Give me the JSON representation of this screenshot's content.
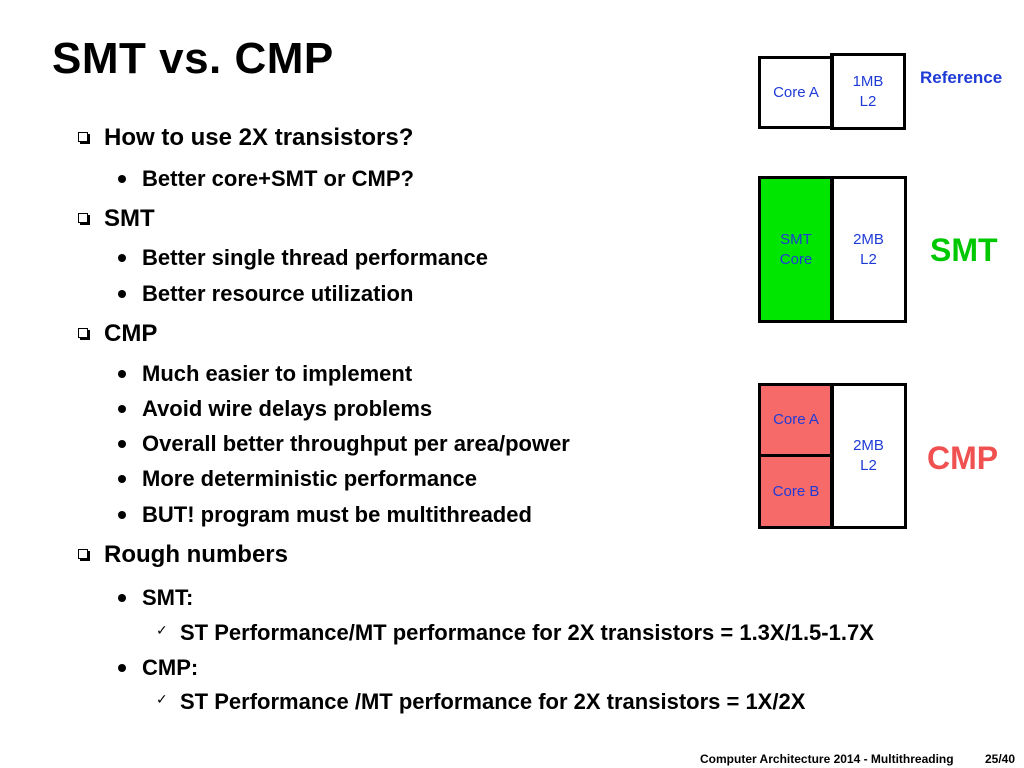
{
  "title": "SMT vs. CMP",
  "bullets": [
    {
      "level": 1,
      "text": "How to use 2X transistors?"
    },
    {
      "level": 2,
      "text": "Better core+SMT   or   CMP?"
    },
    {
      "level": 1,
      "text": "SMT"
    },
    {
      "level": 2,
      "text": "Better single thread performance"
    },
    {
      "level": 2,
      "text": "Better resource utilization"
    },
    {
      "level": 1,
      "text": "CMP"
    },
    {
      "level": 2,
      "text": "Much easier to implement"
    },
    {
      "level": 2,
      "text": "Avoid wire delays problems"
    },
    {
      "level": 2,
      "text": "Overall better throughput per area/power"
    },
    {
      "level": 2,
      "text": "More deterministic performance"
    },
    {
      "level": 2,
      "text": "BUT! program must be multithreaded"
    },
    {
      "level": 1,
      "text": "Rough numbers"
    },
    {
      "level": 2,
      "text": "SMT:"
    },
    {
      "level": 3,
      "text": "ST Performance/MT performance for 2X transistors = 1.3X/1.5-1.7X"
    },
    {
      "level": 2,
      "text": "CMP:"
    },
    {
      "level": 3,
      "text": "ST Performance /MT performance for 2X transistors = 1X/2X"
    }
  ],
  "diagram": {
    "reference": {
      "label": "Reference",
      "core": "Core A",
      "l2_line1": "1MB",
      "l2_line2": "L2"
    },
    "smt": {
      "label": "SMT",
      "core_line1": "SMT",
      "core_line2": "Core",
      "l2_line1": "2MB",
      "l2_line2": "L2"
    },
    "cmp": {
      "label": "CMP",
      "core_a": "Core A",
      "core_b": "Core B",
      "l2_line1": "2MB",
      "l2_line2": "L2"
    }
  },
  "colors": {
    "smt_core_fill": "#00e600",
    "cmp_core_fill": "#f76a6a",
    "reference_label": "#1f3bd6",
    "smt_label": "#00c800",
    "cmp_label": "#f05050",
    "box_text": "#1f3bd6"
  },
  "footer": {
    "course": "Computer Architecture 2014 - Multithreading",
    "page": "25/40"
  }
}
